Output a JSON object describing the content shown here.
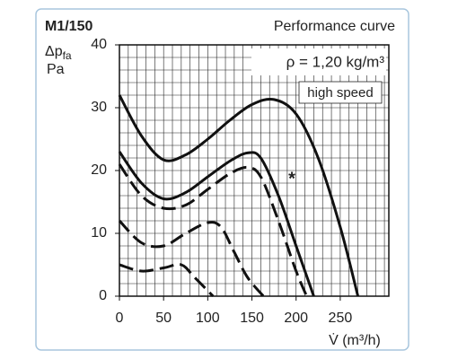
{
  "chart_data": {
    "type": "line",
    "title": "M1/150",
    "subtitle": "Performance curve",
    "y_label": "Δp",
    "y_label_sub": "fa",
    "y_unit": "Pa",
    "x_label": "V̇ (m³/h)",
    "annotations": [
      "ρ = 1,20 kg/m³",
      "high speed",
      "*"
    ],
    "xlim": [
      0,
      305
    ],
    "ylim": [
      0,
      40
    ],
    "xticks": [
      0,
      50,
      100,
      150,
      200,
      250
    ],
    "yticks": [
      0,
      10,
      20,
      30,
      40
    ],
    "grid": true,
    "minor_grid": {
      "x": 10,
      "y": 2
    },
    "series": [
      {
        "color": "#111111",
        "dashed": false,
        "x": [
          0,
          25,
          50,
          75,
          100,
          125,
          150,
          175,
          200,
          225,
          250,
          270
        ],
        "values": [
          32,
          25.5,
          21.7,
          22.5,
          25,
          28,
          30.5,
          31.3,
          29,
          22,
          11,
          0
        ]
      },
      {
        "color": "#111111",
        "dashed": false,
        "x": [
          0,
          25,
          50,
          75,
          100,
          125,
          145,
          160,
          180,
          200,
          220
        ],
        "values": [
          23,
          18,
          15.5,
          16.5,
          19,
          21.5,
          22.8,
          22,
          16,
          8,
          0
        ]
      },
      {
        "color": "#111111",
        "dashed": true,
        "x": [
          0,
          25,
          50,
          75,
          100,
          125,
          145,
          160,
          180,
          200,
          212
        ],
        "values": [
          21,
          16,
          14,
          14.5,
          17,
          19.5,
          20.5,
          19,
          12,
          4,
          0
        ]
      },
      {
        "color": "#111111",
        "dashed": true,
        "x": [
          0,
          25,
          50,
          75,
          100,
          115,
          130,
          145,
          163
        ],
        "values": [
          12,
          8.5,
          8,
          10,
          11.7,
          11,
          7,
          3,
          0
        ]
      },
      {
        "color": "#111111",
        "dashed": true,
        "x": [
          0,
          25,
          50,
          70,
          85,
          106
        ],
        "values": [
          5,
          4,
          4.5,
          5,
          3,
          0
        ]
      }
    ]
  }
}
